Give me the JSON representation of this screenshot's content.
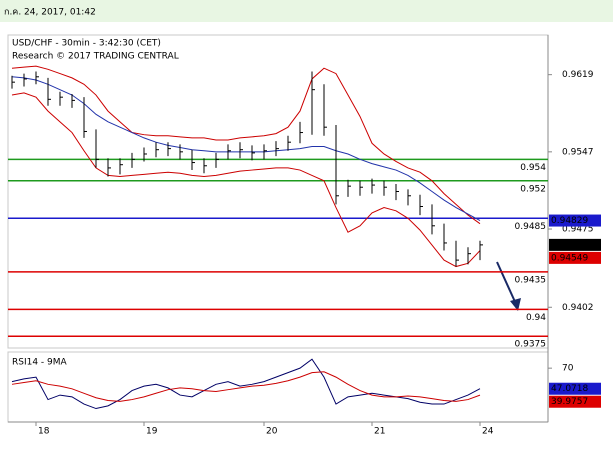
{
  "header": "ก.ค. 24, 2017, 01:42",
  "chart_data": [
    {
      "type": "ohlc",
      "title": "USD/CHF - 30min - 3:42:30 (CET)",
      "subtitle": "Research © 2017 TRADING CENTRAL",
      "categories": [
        null,
        null,
        "18",
        null,
        null,
        null,
        null,
        null,
        null,
        null,
        null,
        "19",
        null,
        null,
        null,
        null,
        null,
        null,
        null,
        null,
        null,
        "20",
        null,
        null,
        null,
        null,
        null,
        null,
        null,
        null,
        "21",
        null,
        null,
        null,
        null,
        null,
        null,
        null,
        null,
        "24"
      ],
      "high": [
        0.9618,
        0.962,
        0.9622,
        0.9616,
        0.9603,
        0.9601,
        0.9598,
        0.9568,
        0.9541,
        0.9541,
        0.9546,
        0.9551,
        0.9556,
        0.9556,
        0.9554,
        0.9549,
        0.9541,
        0.9546,
        0.9554,
        0.9556,
        0.9553,
        0.9554,
        0.9557,
        0.9562,
        0.9575,
        0.9622,
        0.961,
        0.9572,
        0.9521,
        0.952,
        0.9522,
        0.952,
        0.9517,
        0.9512,
        0.9507,
        0.9498,
        0.948,
        0.9464,
        0.9458,
        0.9464
      ],
      "low": [
        0.9606,
        0.9608,
        0.961,
        0.959,
        0.959,
        0.9588,
        0.956,
        0.9532,
        0.9524,
        0.9526,
        0.9532,
        0.9538,
        0.9542,
        0.9543,
        0.954,
        0.953,
        0.9527,
        0.9532,
        0.954,
        0.9541,
        0.9539,
        0.954,
        0.9543,
        0.9548,
        0.9555,
        0.9563,
        0.9562,
        0.9498,
        0.9505,
        0.9506,
        0.9508,
        0.9506,
        0.9502,
        0.9497,
        0.9488,
        0.947,
        0.9455,
        0.944,
        0.9442,
        0.9446
      ],
      "close": [
        0.9612,
        0.9615,
        0.9617,
        0.9596,
        0.9598,
        0.9595,
        0.9566,
        0.954,
        0.9532,
        0.9535,
        0.954,
        0.9545,
        0.9549,
        0.955,
        0.9547,
        0.9537,
        0.9534,
        0.954,
        0.9548,
        0.9549,
        0.9546,
        0.9548,
        0.955,
        0.9556,
        0.9565,
        0.9605,
        0.957,
        0.9506,
        0.9515,
        0.9514,
        0.9516,
        0.9514,
        0.951,
        0.9506,
        0.9496,
        0.9478,
        0.9462,
        0.9446,
        0.9452,
        0.94602
      ],
      "color": "#000000",
      "overlays": [
        {
          "color": "#cc0000",
          "values": [
            0.9625,
            0.9626,
            0.9627,
            0.9624,
            0.962,
            0.9616,
            0.961,
            0.96,
            0.9585,
            0.9575,
            0.9565,
            0.9563,
            0.9562,
            0.9562,
            0.9561,
            0.956,
            0.956,
            0.9558,
            0.9558,
            0.956,
            0.9561,
            0.9562,
            0.9564,
            0.957,
            0.9585,
            0.9615,
            0.9625,
            0.962,
            0.96,
            0.958,
            0.9555,
            0.9545,
            0.9538,
            0.9532,
            0.9528,
            0.952,
            0.9508,
            0.9498,
            0.9488,
            0.948
          ]
        },
        {
          "color": "#cc0000",
          "values": [
            0.96,
            0.9602,
            0.9598,
            0.9585,
            0.9575,
            0.9565,
            0.9548,
            0.9532,
            0.9525,
            0.9524,
            0.9525,
            0.9526,
            0.9527,
            0.9528,
            0.9527,
            0.9525,
            0.9524,
            0.9525,
            0.9527,
            0.9529,
            0.953,
            0.9531,
            0.9532,
            0.9532,
            0.953,
            0.9525,
            0.952,
            0.9495,
            0.9472,
            0.9478,
            0.949,
            0.9495,
            0.9492,
            0.9485,
            0.9474,
            0.946,
            0.9446,
            0.944,
            0.9443,
            0.94549
          ]
        },
        {
          "color": "#2233aa",
          "values": [
            0.9617,
            0.9616,
            0.9614,
            0.961,
            0.9605,
            0.96,
            0.9592,
            0.9582,
            0.9575,
            0.957,
            0.9565,
            0.956,
            0.9556,
            0.9553,
            0.9551,
            0.9549,
            0.9548,
            0.9547,
            0.9547,
            0.9547,
            0.9547,
            0.9547,
            0.9548,
            0.9549,
            0.955,
            0.9552,
            0.9552,
            0.9548,
            0.9545,
            0.954,
            0.9536,
            0.9533,
            0.953,
            0.9525,
            0.9518,
            0.951,
            0.9502,
            0.9495,
            0.9489,
            0.94829
          ]
        }
      ],
      "levels": [
        {
          "value": 0.954,
          "color": "#1e9a1e"
        },
        {
          "value": 0.952,
          "color": "#1e9a1e"
        },
        {
          "value": 0.9485,
          "color": "#1a1acc"
        },
        {
          "value": 0.9435,
          "color": "#dd0000"
        },
        {
          "value": 0.94,
          "color": "#dd0000"
        },
        {
          "value": 0.9375,
          "color": "#dd0000"
        }
      ],
      "ylim": [
        0.9364,
        0.9656
      ],
      "yticks": [
        0.9619,
        0.9547,
        0.9475,
        0.9402
      ]
    },
    {
      "type": "line",
      "title": "RSI14 - 9MA",
      "series": [
        {
          "color": "#000066",
          "values": [
            55,
            58,
            60,
            35,
            40,
            38,
            30,
            25,
            28,
            35,
            45,
            50,
            52,
            48,
            40,
            38,
            45,
            52,
            55,
            50,
            52,
            55,
            60,
            65,
            70,
            80,
            60,
            30,
            38,
            40,
            42,
            40,
            38,
            36,
            32,
            30,
            30,
            35,
            40,
            47.0718
          ]
        },
        {
          "color": "#cc0000",
          "values": [
            52,
            54,
            56,
            52,
            50,
            47,
            42,
            37,
            34,
            33,
            35,
            38,
            42,
            46,
            48,
            47,
            45,
            44,
            46,
            48,
            50,
            51,
            53,
            56,
            60,
            65,
            66,
            60,
            52,
            45,
            40,
            38,
            38,
            39,
            38,
            36,
            34,
            33,
            35,
            39.9757
          ]
        }
      ],
      "ylim": [
        10,
        88
      ],
      "yticks": [
        70
      ]
    }
  ]
}
